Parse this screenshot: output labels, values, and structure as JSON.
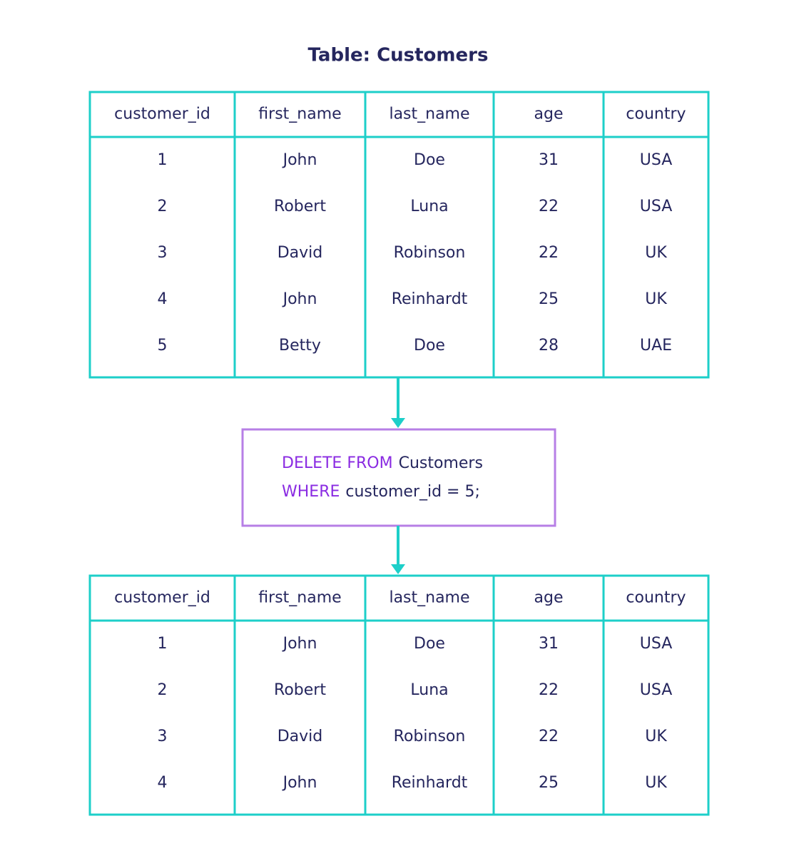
{
  "title": "Table: Customers",
  "table_before": {
    "columns": [
      "customer_id",
      "first_name",
      "last_name",
      "age",
      "country"
    ],
    "rows": [
      [
        1,
        "John",
        "Doe",
        31,
        "USA"
      ],
      [
        2,
        "Robert",
        "Luna",
        22,
        "USA"
      ],
      [
        3,
        "David",
        "Robinson",
        22,
        "UK"
      ],
      [
        4,
        "John",
        "Reinhardt",
        25,
        "UK"
      ],
      [
        5,
        "Betty",
        "Doe",
        28,
        "UAE"
      ]
    ]
  },
  "query": {
    "lines": [
      [
        "DELETE FROM",
        "Customers"
      ],
      [
        "WHERE",
        "customer_id = 5;"
      ]
    ]
  },
  "table_after": {
    "columns": [
      "customer_id",
      "first_name",
      "last_name",
      "age",
      "country"
    ],
    "rows": [
      [
        1,
        "John",
        "Doe",
        31,
        "USA"
      ],
      [
        2,
        "Robert",
        "Luna",
        22,
        "USA"
      ],
      [
        3,
        "David",
        "Robinson",
        22,
        "UK"
      ],
      [
        4,
        "John",
        "Reinhardt",
        25,
        "UK"
      ]
    ]
  }
}
